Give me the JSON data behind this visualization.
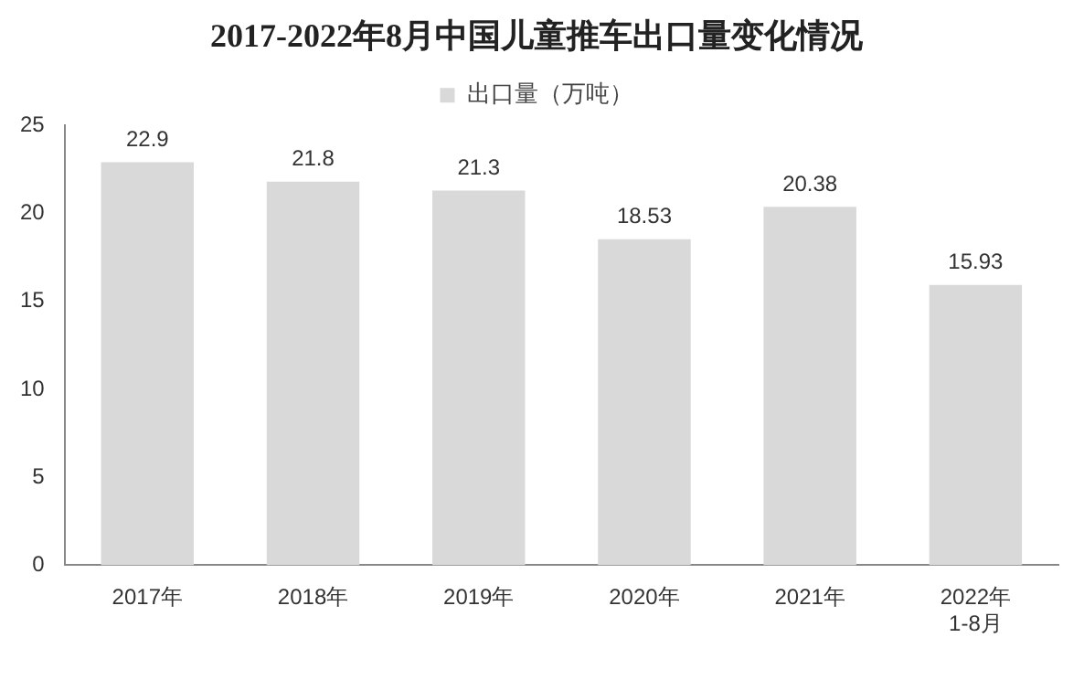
{
  "chart_data": {
    "type": "bar",
    "title": "2017-2022年8月中国儿童推车出口量变化情况",
    "categories": [
      "2017年",
      "2018年",
      "2019年",
      "2020年",
      "2021年",
      "2022年\n1-8月"
    ],
    "series": [
      {
        "name": "出口量（万吨）",
        "color": "#d9d9d9",
        "values": [
          22.9,
          21.8,
          21.3,
          18.53,
          20.38,
          15.93
        ]
      }
    ],
    "ylim": [
      0,
      25
    ],
    "yticks": [
      0,
      5,
      10,
      15,
      20,
      25
    ],
    "grid": false,
    "legend": "top",
    "data_labels": true
  }
}
